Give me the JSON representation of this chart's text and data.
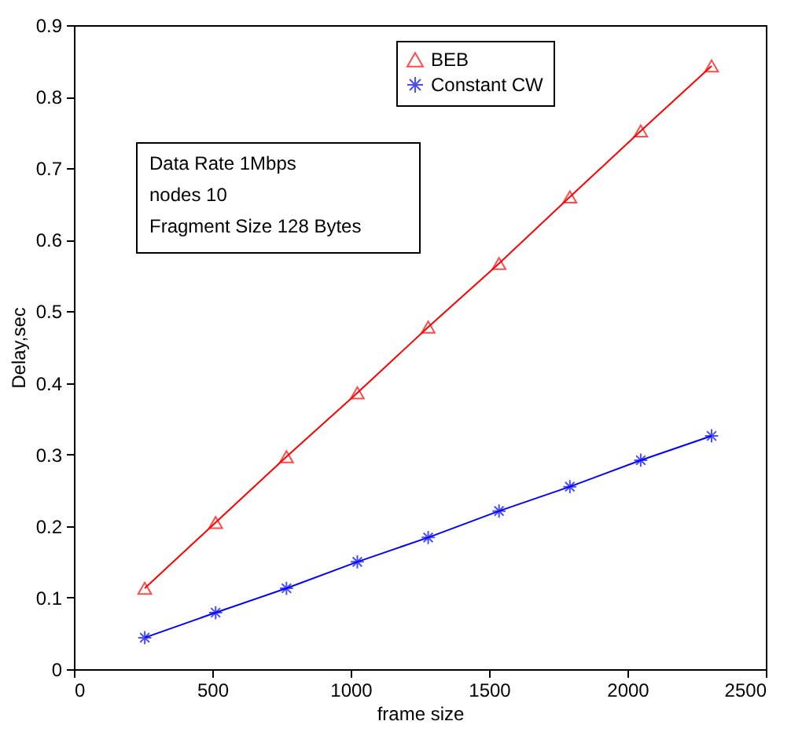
{
  "chart_data": {
    "type": "line",
    "xlabel": "frame size",
    "ylabel": "Delay,sec",
    "x": [
      256,
      512,
      768,
      1024,
      1280,
      1536,
      1792,
      2048,
      2304
    ],
    "series": [
      {
        "name": "BEB",
        "color": "#ff0000",
        "marker": "triangle",
        "values": [
          0.113,
          0.205,
          0.297,
          0.386,
          0.478,
          0.567,
          0.66,
          0.752,
          0.843
        ]
      },
      {
        "name": "Constant CW",
        "color": "#0000ff",
        "marker": "cross",
        "values": [
          0.044,
          0.079,
          0.113,
          0.15,
          0.184,
          0.221,
          0.255,
          0.292,
          0.326
        ]
      }
    ],
    "xlim": [
      0,
      2500
    ],
    "xticks": [
      0,
      500,
      1000,
      1500,
      2000,
      2500
    ],
    "ylim": [
      0,
      0.9
    ],
    "yticks": [
      0,
      0.1,
      0.2,
      0.3,
      0.4,
      0.5,
      0.6,
      0.7,
      0.8,
      0.9
    ],
    "grid": false,
    "legend": "top right",
    "line_style": "solid",
    "annotations": [
      "Data Rate 1Mbps",
      "nodes 10",
      "Fragment Size 128 Bytes"
    ]
  }
}
